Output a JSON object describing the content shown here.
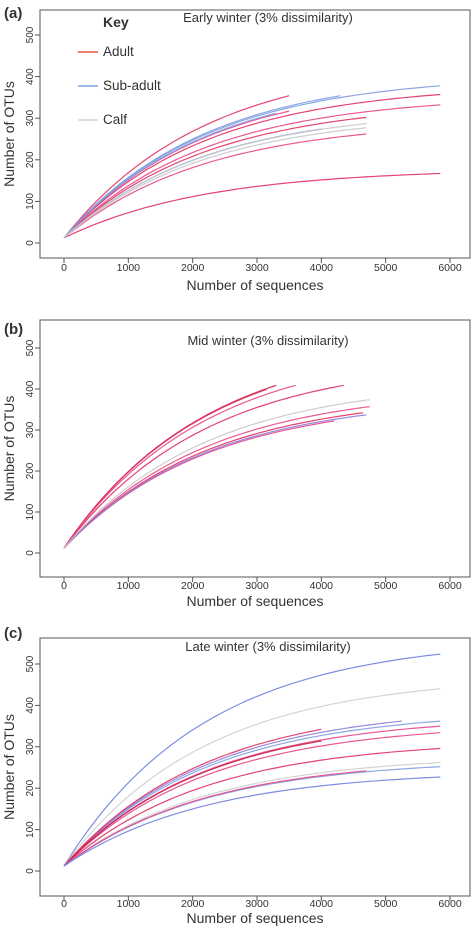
{
  "key": {
    "title": "Key",
    "items": [
      {
        "label": "Adult",
        "color": "#e8553a"
      },
      {
        "label": "Sub-adult",
        "color": "#7f9ee0"
      },
      {
        "label": "Calf",
        "color": "#d2d2d2"
      }
    ]
  },
  "chart_data": [
    {
      "type": "line",
      "panel_label": "(a)",
      "title": "Early winter (3% dissimilarity)",
      "xlabel": "Number of sequences",
      "ylabel": "Number of OTUs",
      "xlim": [
        0,
        6000
      ],
      "ylim": [
        0,
        500
      ],
      "xticks": [
        "0",
        "1000",
        "2000",
        "3000",
        "4000",
        "5000",
        "6000"
      ],
      "yticks": [
        "0",
        "100",
        "200",
        "300",
        "400",
        "500"
      ],
      "legend": "top-left",
      "series": [
        {
          "group": "adult",
          "color": "#e0305e",
          "xmax": 3500,
          "ymax": 342
        },
        {
          "group": "adult",
          "color": "#e8468a",
          "xmax": 3500,
          "ymax": 305
        },
        {
          "group": "adult",
          "color": "#e0305e",
          "xmax": 4700,
          "ymax": 290
        },
        {
          "group": "adult",
          "color": "#e8468a",
          "xmax": 4700,
          "ymax": 250
        },
        {
          "group": "adult",
          "color": "#e0305e",
          "xmax": 5850,
          "ymax": 345
        },
        {
          "group": "adult",
          "color": "#e8468a",
          "xmax": 5850,
          "ymax": 320
        },
        {
          "group": "adult",
          "color": "#e0305e",
          "xmax": 5850,
          "ymax": 155
        },
        {
          "group": "sub-adult",
          "color": "#7f9ee0",
          "xmax": 5850,
          "ymax": 366
        },
        {
          "group": "sub-adult",
          "color": "#7f9ee0",
          "xmax": 4300,
          "ymax": 342
        },
        {
          "group": "sub-adult",
          "color": "#7f9ee0",
          "xmax": 3300,
          "ymax": 300
        },
        {
          "group": "sub-adult",
          "color": "#7f9ee0",
          "xmax": 4000,
          "ymax": 262
        },
        {
          "group": "calf",
          "color": "#c8c8c8",
          "xmax": 4700,
          "ymax": 275
        },
        {
          "group": "calf",
          "color": "#c8c8c8",
          "xmax": 4700,
          "ymax": 265
        }
      ]
    },
    {
      "type": "line",
      "panel_label": "(b)",
      "title": "Mid winter (3% dissimilarity)",
      "xlabel": "Number of sequences",
      "ylabel": "Number of OTUs",
      "xlim": [
        0,
        6000
      ],
      "ylim": [
        0,
        500
      ],
      "xticks": [
        "0",
        "1000",
        "2000",
        "3000",
        "4000",
        "5000",
        "6000"
      ],
      "yticks": [
        "0",
        "100",
        "200",
        "300",
        "400",
        "500"
      ],
      "series": [
        {
          "group": "adult",
          "color": "#c81e46",
          "xmax": 3300,
          "ymax": 397
        },
        {
          "group": "adult",
          "color": "#e0305e",
          "xmax": 3150,
          "ymax": 387
        },
        {
          "group": "adult",
          "color": "#e8468a",
          "xmax": 3600,
          "ymax": 397
        },
        {
          "group": "adult",
          "color": "#e0305e",
          "xmax": 4350,
          "ymax": 397
        },
        {
          "group": "adult",
          "color": "#e8468a",
          "xmax": 4750,
          "ymax": 345
        },
        {
          "group": "adult",
          "color": "#e0305e",
          "xmax": 4650,
          "ymax": 330
        },
        {
          "group": "adult",
          "color": "#e8468a",
          "xmax": 4200,
          "ymax": 310
        },
        {
          "group": "sub-adult",
          "color": "#8a7fd8",
          "xmax": 4700,
          "ymax": 325
        },
        {
          "group": "calf",
          "color": "#c8c8c8",
          "xmax": 4750,
          "ymax": 362
        }
      ]
    },
    {
      "type": "line",
      "panel_label": "(c)",
      "title": "Late winter (3% dissimilarity)",
      "xlabel": "Number of sequences",
      "ylabel": "Number of OTUs",
      "xlim": [
        0,
        6000
      ],
      "ylim": [
        0,
        500
      ],
      "xticks": [
        "0",
        "1000",
        "2000",
        "3000",
        "4000",
        "5000",
        "6000"
      ],
      "yticks": [
        "0",
        "100",
        "200",
        "300",
        "400",
        "500"
      ],
      "series": [
        {
          "group": "sub-adult",
          "color": "#6f7fe0",
          "xmax": 5850,
          "ymax": 512
        },
        {
          "group": "calf",
          "color": "#cfcfcf",
          "xmax": 5850,
          "ymax": 428
        },
        {
          "group": "sub-adult",
          "color": "#7f9ee0",
          "xmax": 5850,
          "ymax": 350
        },
        {
          "group": "sub-adult",
          "color": "#8a7fd8",
          "xmax": 5250,
          "ymax": 350
        },
        {
          "group": "adult",
          "color": "#e8468a",
          "xmax": 5850,
          "ymax": 338
        },
        {
          "group": "adult",
          "color": "#e0305e",
          "xmax": 4000,
          "ymax": 330
        },
        {
          "group": "adult",
          "color": "#e8468a",
          "xmax": 5850,
          "ymax": 322
        },
        {
          "group": "adult",
          "color": "#c81e46",
          "xmax": 4000,
          "ymax": 302
        },
        {
          "group": "adult",
          "color": "#e0305e",
          "xmax": 5850,
          "ymax": 284
        },
        {
          "group": "calf",
          "color": "#cfcfcf",
          "xmax": 5850,
          "ymax": 250
        },
        {
          "group": "sub-adult",
          "color": "#7f9ee0",
          "xmax": 5850,
          "ymax": 240
        },
        {
          "group": "adult",
          "color": "#e8468a",
          "xmax": 4700,
          "ymax": 230
        },
        {
          "group": "sub-adult",
          "color": "#6f7fe0",
          "xmax": 5850,
          "ymax": 215
        }
      ]
    }
  ]
}
